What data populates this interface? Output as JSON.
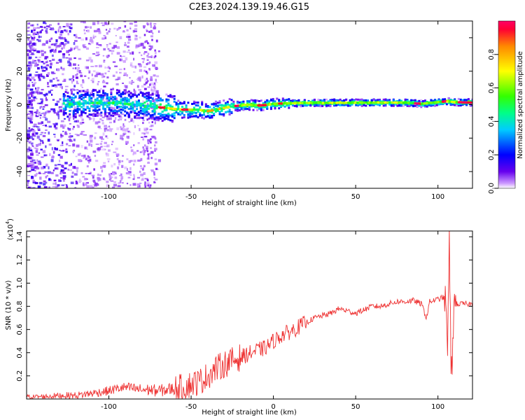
{
  "title": "C2E3.2024.139.19.46.G15",
  "chart_data": [
    {
      "type": "heatmap",
      "xlabel": "Height of straight line (km)",
      "ylabel": "Frequency (Hz)",
      "xlim": [
        -150,
        121
      ],
      "ylim": [
        -50,
        50
      ],
      "x_ticks": [
        -100,
        -50,
        0,
        50,
        100
      ],
      "x_tick_labels": [
        "-100",
        "-50",
        "0",
        "50",
        "100"
      ],
      "y_ticks": [
        -40,
        -20,
        0,
        20,
        40
      ],
      "y_tick_labels": [
        "-40",
        "-20",
        "0",
        "20",
        "40"
      ],
      "ridge": {
        "x": [
          -128,
          -110,
          -95,
          -85,
          -75,
          -65,
          -55,
          -45,
          -40,
          -35,
          -30,
          -25,
          -20,
          -15,
          -10,
          -5,
          0,
          10,
          20,
          40,
          60,
          80,
          90,
          95,
          100,
          105,
          110,
          121
        ],
        "y": [
          0,
          1,
          1,
          0,
          -1,
          -2,
          -3,
          -3,
          -4,
          -3,
          -2,
          -1,
          -0.5,
          0,
          -0.5,
          -0.3,
          0.5,
          0.8,
          1,
          1.1,
          1.2,
          1.2,
          0.5,
          1,
          1.5,
          2,
          1.5,
          1.2
        ]
      },
      "colorbar": {
        "label": "Normalized spectral amplitude",
        "range": [
          0,
          1
        ],
        "ticks": [
          0.0,
          0.2,
          0.4,
          0.6,
          0.8
        ],
        "tick_labels": [
          "0.0",
          "0.2",
          "0.4",
          "0.6",
          "0.8"
        ]
      },
      "grid": false
    },
    {
      "type": "line",
      "xlabel": "Height of straight line (km)",
      "ylabel": "SNR (10 * v/v)",
      "y_multiplier": "(x10",
      "y_multiplier_exp": "4",
      "y_multiplier_close": ")",
      "xlim": [
        -150,
        121
      ],
      "ylim": [
        0,
        1.45
      ],
      "x_ticks": [
        -100,
        -50,
        0,
        50,
        100
      ],
      "x_tick_labels": [
        "-100",
        "-50",
        "0",
        "50",
        "100"
      ],
      "y_ticks": [
        0.2,
        0.4,
        0.6,
        0.8,
        1.0,
        1.2,
        1.4
      ],
      "y_tick_labels": [
        "0.2",
        "0.4",
        "0.6",
        "0.8",
        "1.0",
        "1.2",
        "1.4"
      ],
      "color": "#ee3333",
      "series": [
        {
          "x": [
            -150,
            -140,
            -130,
            -120,
            -110,
            -100,
            -95,
            -90,
            -85,
            -80,
            -75,
            -70,
            -65,
            -60,
            -55,
            -50,
            -45,
            -40,
            -35,
            -30,
            -25,
            -20,
            -15,
            -10,
            -5,
            0,
            5,
            10,
            15,
            20,
            25,
            30,
            35,
            40,
            45,
            50,
            55,
            60,
            65,
            70,
            75,
            80,
            85,
            90,
            93,
            95,
            100,
            104,
            106,
            107,
            108,
            109,
            110,
            115,
            121
          ],
          "y": [
            0.02,
            0.02,
            0.03,
            0.03,
            0.05,
            0.07,
            0.09,
            0.1,
            0.09,
            0.08,
            0.08,
            0.07,
            0.08,
            0.09,
            0.1,
            0.13,
            0.15,
            0.2,
            0.26,
            0.3,
            0.33,
            0.36,
            0.39,
            0.42,
            0.44,
            0.5,
            0.55,
            0.58,
            0.62,
            0.66,
            0.7,
            0.72,
            0.74,
            0.78,
            0.76,
            0.74,
            0.77,
            0.8,
            0.8,
            0.82,
            0.84,
            0.84,
            0.85,
            0.82,
            0.7,
            0.84,
            0.86,
            0.88,
            0.5,
            1.4,
            0.1,
            0.55,
            0.82,
            0.82,
            0.82
          ]
        }
      ],
      "grid": false
    }
  ]
}
